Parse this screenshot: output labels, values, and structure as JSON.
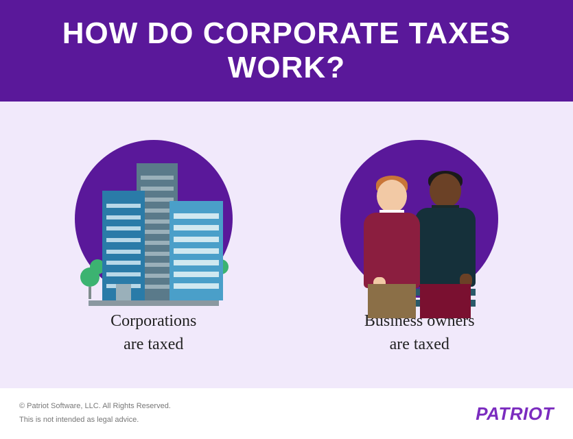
{
  "header": {
    "title": "HOW DO CORPORATE TAXES WORK?"
  },
  "panels": {
    "left": {
      "caption_line1": "Corporations",
      "caption_line2": "are taxed"
    },
    "right": {
      "caption_line1": "Business owners",
      "caption_line2": "are taxed"
    }
  },
  "footer": {
    "copyright": "© Patriot Software, LLC. All Rights Reserved.",
    "disclaimer": "This is not intended as legal advice.",
    "brand": "PATRIOT"
  },
  "colors": {
    "header_bg": "#5a189a",
    "content_bg": "#f1e9fb",
    "circle_bg": "#5a189a",
    "brand_color": "#7b2cbf"
  }
}
